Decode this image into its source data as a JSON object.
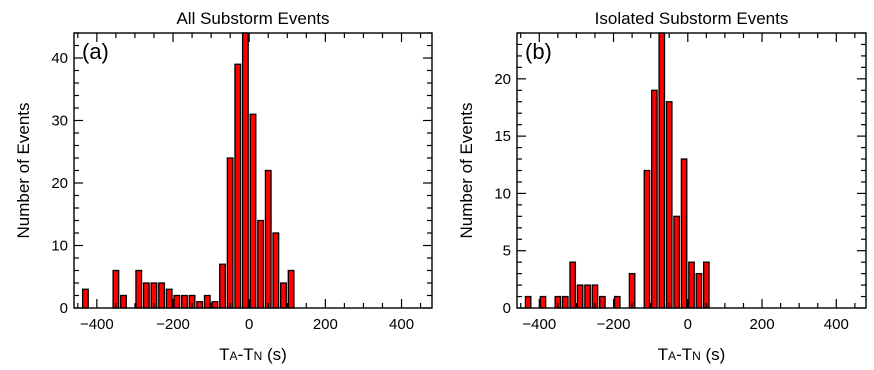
{
  "chart_data": [
    {
      "type": "bar",
      "title": "All Substorm Events",
      "panel_label": "(a)",
      "xlabel_main_a": "T",
      "xlabel_sub_a": "A",
      "xlabel_dash": "-",
      "xlabel_main_n": "T",
      "xlabel_sub_n": "N",
      "xlabel_unit": " (s)",
      "ylabel": "Number of Events",
      "xlim": [
        -460,
        480
      ],
      "ylim": [
        0,
        44
      ],
      "xticks": [
        -400,
        -200,
        0,
        200,
        400
      ],
      "yticks": [
        0,
        10,
        20,
        30,
        40
      ],
      "bin_width": 20,
      "x": [
        -440,
        -360,
        -340,
        -300,
        -280,
        -260,
        -240,
        -220,
        -200,
        -180,
        -160,
        -140,
        -120,
        -100,
        -80,
        -60,
        -40,
        -20,
        0,
        20,
        40,
        60,
        80,
        100,
        120,
        140,
        160,
        180,
        200,
        220,
        240
      ],
      "values": [
        3,
        6,
        2,
        6,
        4,
        4,
        4,
        3,
        2,
        2,
        2,
        1,
        2,
        1,
        7,
        24,
        39,
        44,
        31,
        14,
        22,
        12,
        4,
        6,
        0,
        0,
        0,
        0,
        0,
        0,
        0
      ]
    },
    {
      "type": "bar",
      "title": "Isolated Substorm Events",
      "panel_label": "(b)",
      "xlabel_main_a": "T",
      "xlabel_sub_a": "A",
      "xlabel_dash": "-",
      "xlabel_main_n": "T",
      "xlabel_sub_n": "N",
      "xlabel_unit": " (s)",
      "ylabel": "Number of Events",
      "xlim": [
        -460,
        480
      ],
      "ylim": [
        0,
        24
      ],
      "xticks": [
        -400,
        -200,
        0,
        200,
        400
      ],
      "yticks": [
        0,
        5,
        10,
        15,
        20
      ],
      "bin_width": 20,
      "x": [
        -440,
        -400,
        -360,
        -340,
        -320,
        -300,
        -280,
        -260,
        -240,
        -200,
        -160,
        -120,
        -100,
        -80,
        -60,
        -40,
        -20,
        0,
        20,
        40,
        60,
        80,
        100,
        120
      ],
      "values": [
        1,
        1,
        1,
        1,
        4,
        2,
        2,
        2,
        1,
        1,
        3,
        12,
        19,
        24,
        18,
        8,
        13,
        4,
        3,
        4,
        0,
        0,
        0,
        0
      ]
    }
  ]
}
